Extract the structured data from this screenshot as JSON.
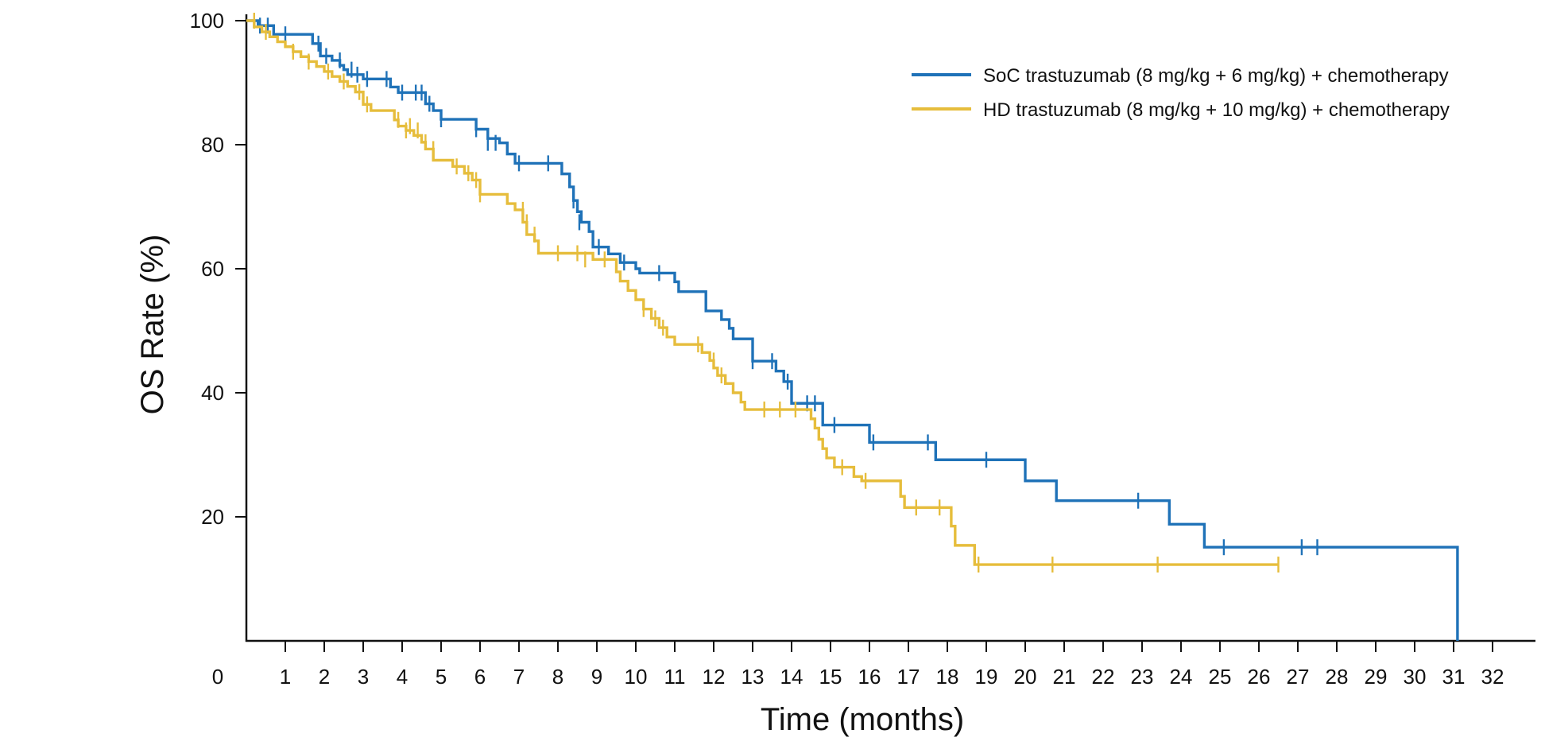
{
  "chart_data": {
    "type": "line",
    "subtype": "kaplan-meier-step",
    "title": "",
    "xlabel": "Time (months)",
    "ylabel": "OS Rate (%)",
    "xlim": [
      0,
      33
    ],
    "ylim": [
      0,
      100
    ],
    "x_ticks": [
      0,
      1,
      2,
      3,
      4,
      5,
      6,
      7,
      8,
      9,
      10,
      11,
      12,
      13,
      14,
      15,
      16,
      17,
      18,
      19,
      20,
      21,
      22,
      23,
      24,
      25,
      26,
      27,
      28,
      29,
      30,
      31,
      32
    ],
    "y_ticks": [
      100,
      80,
      60,
      40,
      20
    ],
    "grid": false,
    "legend_position": "top-right",
    "series": [
      {
        "name": "SoC trastuzumab (8 mg/kg + 6 mg/kg) + chemotherapy",
        "color": "#1f72b8",
        "points": [
          [
            0,
            100
          ],
          [
            0.3,
            99.2
          ],
          [
            0.6,
            99.2
          ],
          [
            0.7,
            97.8
          ],
          [
            1.5,
            97.8
          ],
          [
            1.7,
            96.3
          ],
          [
            1.9,
            94.3
          ],
          [
            2.2,
            93.6
          ],
          [
            2.4,
            92.8
          ],
          [
            2.5,
            92.1
          ],
          [
            2.6,
            91.3
          ],
          [
            2.8,
            91.3
          ],
          [
            3.0,
            90.6
          ],
          [
            3.5,
            90.6
          ],
          [
            3.7,
            89.3
          ],
          [
            3.9,
            88.4
          ],
          [
            4.5,
            88.4
          ],
          [
            4.6,
            86.6
          ],
          [
            4.8,
            85.5
          ],
          [
            5.0,
            84.1
          ],
          [
            5.8,
            84.1
          ],
          [
            5.9,
            82.5
          ],
          [
            6.2,
            81.0
          ],
          [
            6.5,
            80.3
          ],
          [
            6.7,
            78.5
          ],
          [
            6.9,
            77.0
          ],
          [
            7.7,
            77.0
          ],
          [
            8.1,
            75.3
          ],
          [
            8.3,
            73.2
          ],
          [
            8.4,
            71.0
          ],
          [
            8.5,
            69.2
          ],
          [
            8.6,
            67.5
          ],
          [
            8.8,
            66.0
          ],
          [
            8.9,
            63.5
          ],
          [
            9.3,
            62.4
          ],
          [
            9.6,
            61.0
          ],
          [
            10.0,
            60.0
          ],
          [
            10.1,
            59.3
          ],
          [
            10.6,
            59.3
          ],
          [
            11.0,
            57.9
          ],
          [
            11.1,
            56.3
          ],
          [
            11.7,
            56.3
          ],
          [
            11.8,
            53.2
          ],
          [
            12.2,
            51.8
          ],
          [
            12.4,
            50.4
          ],
          [
            12.5,
            48.7
          ],
          [
            12.9,
            48.7
          ],
          [
            13.0,
            45.1
          ],
          [
            13.5,
            45.1
          ],
          [
            13.6,
            43.5
          ],
          [
            13.8,
            41.8
          ],
          [
            14.0,
            38.3
          ],
          [
            14.7,
            38.3
          ],
          [
            14.8,
            34.8
          ],
          [
            15.9,
            34.8
          ],
          [
            16.0,
            32.0
          ],
          [
            17.6,
            32.0
          ],
          [
            17.7,
            29.2
          ],
          [
            19.9,
            29.2
          ],
          [
            20.0,
            25.8
          ],
          [
            20.7,
            25.8
          ],
          [
            20.8,
            22.6
          ],
          [
            23.6,
            22.6
          ],
          [
            23.7,
            18.8
          ],
          [
            24.5,
            18.8
          ],
          [
            24.6,
            15.1
          ],
          [
            31.1,
            15.1
          ],
          [
            31.1,
            0
          ]
        ],
        "censor": [
          [
            0.35,
            99.2
          ],
          [
            0.55,
            99.2
          ],
          [
            1.0,
            97.8
          ],
          [
            1.85,
            96.3
          ],
          [
            2.05,
            94.3
          ],
          [
            2.4,
            93.6
          ],
          [
            2.7,
            92.1
          ],
          [
            2.85,
            91.3
          ],
          [
            3.1,
            90.6
          ],
          [
            3.6,
            90.6
          ],
          [
            4.0,
            88.4
          ],
          [
            4.35,
            88.4
          ],
          [
            4.5,
            88.4
          ],
          [
            4.7,
            86.6
          ],
          [
            5.0,
            84.1
          ],
          [
            5.9,
            82.5
          ],
          [
            6.2,
            80.3
          ],
          [
            6.4,
            80.3
          ],
          [
            7.0,
            77.0
          ],
          [
            7.75,
            77.0
          ],
          [
            8.4,
            71.0
          ],
          [
            8.55,
            67.5
          ],
          [
            9.05,
            63.5
          ],
          [
            9.7,
            61.0
          ],
          [
            10.6,
            59.3
          ],
          [
            13.0,
            45.1
          ],
          [
            13.5,
            45.1
          ],
          [
            13.9,
            41.8
          ],
          [
            14.4,
            38.3
          ],
          [
            14.6,
            38.3
          ],
          [
            15.1,
            34.8
          ],
          [
            16.1,
            32.0
          ],
          [
            17.5,
            32.0
          ],
          [
            19.0,
            29.2
          ],
          [
            22.9,
            22.6
          ],
          [
            25.1,
            15.1
          ],
          [
            27.1,
            15.1
          ],
          [
            27.5,
            15.1
          ]
        ]
      },
      {
        "name": "HD trastuzumab (8 mg/kg + 10 mg/kg) + chemotherapy",
        "color": "#e6bd3c",
        "points": [
          [
            0,
            100
          ],
          [
            0.2,
            99.0
          ],
          [
            0.4,
            98.2
          ],
          [
            0.6,
            97.4
          ],
          [
            0.8,
            96.6
          ],
          [
            1.0,
            95.8
          ],
          [
            1.2,
            95.0
          ],
          [
            1.4,
            94.2
          ],
          [
            1.6,
            93.4
          ],
          [
            1.8,
            92.6
          ],
          [
            2.0,
            91.8
          ],
          [
            2.2,
            91.0
          ],
          [
            2.4,
            90.2
          ],
          [
            2.6,
            89.4
          ],
          [
            2.8,
            88.5
          ],
          [
            3.0,
            86.5
          ],
          [
            3.2,
            85.5
          ],
          [
            3.7,
            85.5
          ],
          [
            3.8,
            84.0
          ],
          [
            3.9,
            83.0
          ],
          [
            4.1,
            82.3
          ],
          [
            4.3,
            81.5
          ],
          [
            4.5,
            80.4
          ],
          [
            4.6,
            79.3
          ],
          [
            4.8,
            77.5
          ],
          [
            5.2,
            77.5
          ],
          [
            5.3,
            76.5
          ],
          [
            5.6,
            75.4
          ],
          [
            5.8,
            74.3
          ],
          [
            6.0,
            72.0
          ],
          [
            6.5,
            72.0
          ],
          [
            6.7,
            70.5
          ],
          [
            6.9,
            69.5
          ],
          [
            7.1,
            67.5
          ],
          [
            7.2,
            65.5
          ],
          [
            7.4,
            64.5
          ],
          [
            7.5,
            62.5
          ],
          [
            8.8,
            62.5
          ],
          [
            8.9,
            61.5
          ],
          [
            9.4,
            61.5
          ],
          [
            9.5,
            59.5
          ],
          [
            9.6,
            58.0
          ],
          [
            9.8,
            56.5
          ],
          [
            10.0,
            55.0
          ],
          [
            10.2,
            53.5
          ],
          [
            10.4,
            52.0
          ],
          [
            10.6,
            50.5
          ],
          [
            10.8,
            49.0
          ],
          [
            11.0,
            47.8
          ],
          [
            11.6,
            47.8
          ],
          [
            11.7,
            46.5
          ],
          [
            11.9,
            45.2
          ],
          [
            12.0,
            44.0
          ],
          [
            12.1,
            42.8
          ],
          [
            12.3,
            41.5
          ],
          [
            12.5,
            40.0
          ],
          [
            12.7,
            38.5
          ],
          [
            12.8,
            37.3
          ],
          [
            14.4,
            37.3
          ],
          [
            14.5,
            35.8
          ],
          [
            14.6,
            34.3
          ],
          [
            14.7,
            32.5
          ],
          [
            14.8,
            31.0
          ],
          [
            14.9,
            29.5
          ],
          [
            15.1,
            28.0
          ],
          [
            15.5,
            28.0
          ],
          [
            15.6,
            26.5
          ],
          [
            15.8,
            25.8
          ],
          [
            16.7,
            25.8
          ],
          [
            16.8,
            23.3
          ],
          [
            16.9,
            21.5
          ],
          [
            18.1,
            21.5
          ],
          [
            18.1,
            18.5
          ],
          [
            18.2,
            15.4
          ],
          [
            18.7,
            15.4
          ],
          [
            18.7,
            12.3
          ],
          [
            26.5,
            12.3
          ]
        ],
        "censor": [
          [
            0.2,
            100
          ],
          [
            0.5,
            98.2
          ],
          [
            1.2,
            95.0
          ],
          [
            1.6,
            93.4
          ],
          [
            2.1,
            91.8
          ],
          [
            2.5,
            90.2
          ],
          [
            2.9,
            88.5
          ],
          [
            3.1,
            86.5
          ],
          [
            3.9,
            84.0
          ],
          [
            4.1,
            82.3
          ],
          [
            4.2,
            83.0
          ],
          [
            4.4,
            82.3
          ],
          [
            4.6,
            80.4
          ],
          [
            4.8,
            79.3
          ],
          [
            5.4,
            76.5
          ],
          [
            5.7,
            75.4
          ],
          [
            5.9,
            74.3
          ],
          [
            6.0,
            72.0
          ],
          [
            7.1,
            69.5
          ],
          [
            7.2,
            67.5
          ],
          [
            7.4,
            65.5
          ],
          [
            8.0,
            62.5
          ],
          [
            8.5,
            62.5
          ],
          [
            8.7,
            61.5
          ],
          [
            9.2,
            61.5
          ],
          [
            10.2,
            53.5
          ],
          [
            10.5,
            52.0
          ],
          [
            10.7,
            50.5
          ],
          [
            11.6,
            47.8
          ],
          [
            12.0,
            45.2
          ],
          [
            12.2,
            42.8
          ],
          [
            13.3,
            37.3
          ],
          [
            13.7,
            37.3
          ],
          [
            14.1,
            37.3
          ],
          [
            15.3,
            28.0
          ],
          [
            15.9,
            25.8
          ],
          [
            17.2,
            21.5
          ],
          [
            17.8,
            21.5
          ],
          [
            18.8,
            12.3
          ],
          [
            20.7,
            12.3
          ],
          [
            23.4,
            12.3
          ],
          [
            26.5,
            12.3
          ]
        ]
      }
    ]
  }
}
